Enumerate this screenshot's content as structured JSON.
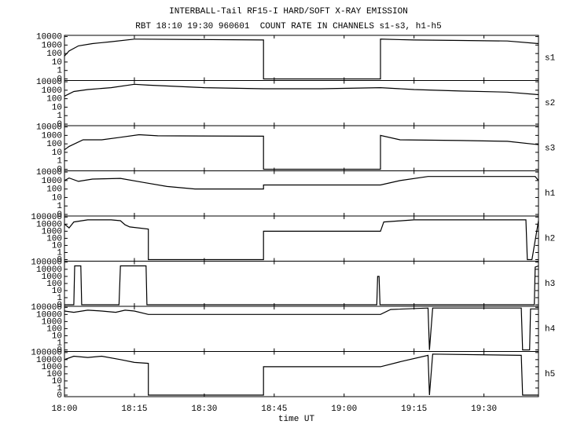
{
  "chart_data": [
    {
      "type": "line",
      "title": "INTERBALL-Tail RF15-I HARD/SOFT X-RAY EMISSION",
      "subtitle": "RBT 18:10 19:30 960601  COUNT RATE IN CHANNELS s1-s3, h1-h5",
      "ylabel": "s1",
      "yscale": "log",
      "ylim": [
        0,
        14000
      ],
      "yticks": [
        10000,
        1000,
        100,
        10,
        1,
        0
      ],
      "color": "#000000",
      "x": [
        0,
        1,
        3,
        6,
        10,
        15,
        16,
        42.7,
        42.7,
        67.8,
        67.8,
        75,
        85,
        95,
        101.7
      ],
      "values": [
        50,
        200,
        800,
        1500,
        2500,
        5000,
        5000,
        4000,
        0,
        0,
        5000,
        4000,
        3500,
        3000,
        1500
      ]
    },
    {
      "type": "line",
      "ylabel": "s2",
      "yscale": "log",
      "ylim": [
        0,
        14000
      ],
      "yticks": [
        10000,
        1000,
        100,
        10,
        1,
        0
      ],
      "color": "#000000",
      "x": [
        0,
        2,
        5,
        10,
        15,
        18,
        30,
        42.7,
        55,
        67.8,
        75,
        85,
        95,
        101.7
      ],
      "values": [
        200,
        700,
        1200,
        2000,
        5000,
        4000,
        2000,
        1500,
        1500,
        2000,
        1200,
        800,
        600,
        300
      ]
    },
    {
      "type": "line",
      "ylabel": "s3",
      "yscale": "log",
      "ylim": [
        0,
        14000
      ],
      "yticks": [
        10000,
        1000,
        100,
        10,
        1,
        0
      ],
      "color": "#000000",
      "x": [
        0,
        1,
        4,
        8,
        12,
        16,
        20,
        42.7,
        42.7,
        67.8,
        67.8,
        72,
        85,
        95,
        101.7
      ],
      "values": [
        20,
        50,
        300,
        300,
        600,
        1200,
        900,
        800,
        0,
        0,
        1000,
        300,
        250,
        200,
        80
      ]
    },
    {
      "type": "line",
      "ylabel": "h1",
      "yscale": "log",
      "ylim": [
        0,
        14000
      ],
      "yticks": [
        10000,
        1000,
        100,
        10,
        1,
        0
      ],
      "color": "#000000",
      "x": [
        0,
        1,
        3,
        6,
        12,
        17,
        22,
        28,
        42.7,
        42.7,
        67.8,
        72,
        78,
        85,
        95,
        101,
        101.7
      ],
      "values": [
        1000,
        2000,
        800,
        1500,
        1800,
        600,
        200,
        100,
        100,
        300,
        300,
        1000,
        3000,
        3000,
        3000,
        3000,
        1000
      ]
    },
    {
      "type": "line",
      "ylabel": "h2",
      "yscale": "log",
      "ylim": [
        0,
        140000
      ],
      "yticks": [
        100000,
        10000,
        1000,
        100,
        10,
        1,
        0
      ],
      "color": "#000000",
      "x": [
        0,
        1,
        2,
        5,
        10,
        12,
        13,
        14,
        18,
        18,
        42.7,
        42.7,
        67.8,
        68.5,
        75,
        90,
        99,
        99.3,
        100.3,
        101.7
      ],
      "values": [
        10000,
        3000,
        20000,
        40000,
        40000,
        30000,
        8000,
        4000,
        2000,
        0,
        0,
        1000,
        1000,
        20000,
        40000,
        40000,
        40000,
        0,
        0,
        30000
      ]
    },
    {
      "type": "line",
      "ylabel": "h3",
      "yscale": "log",
      "ylim": [
        0,
        140000
      ],
      "yticks": [
        100000,
        10000,
        1000,
        100,
        10,
        1,
        0
      ],
      "color": "#000000",
      "x": [
        0,
        2,
        2.2,
        3.5,
        3.7,
        11.5,
        11.7,
        12,
        17.5,
        17.7,
        67,
        67.2,
        67.5,
        67.7,
        100.8,
        101,
        101.7
      ],
      "values": [
        0,
        0,
        30000,
        30000,
        0,
        0,
        0,
        30000,
        30000,
        0,
        0,
        1000,
        1000,
        0,
        0,
        20000,
        30000
      ]
    },
    {
      "type": "line",
      "ylabel": "h4",
      "yscale": "log",
      "ylim": [
        0,
        140000
      ],
      "yticks": [
        100000,
        10000,
        1000,
        100,
        10,
        1,
        0
      ],
      "color": "#000000",
      "x": [
        0,
        2,
        5,
        8,
        11,
        13,
        15,
        18,
        42.7,
        67.8,
        70,
        78,
        78.3,
        79,
        98,
        98.3,
        99.8,
        100,
        101.7
      ],
      "values": [
        30000,
        20000,
        40000,
        30000,
        20000,
        40000,
        30000,
        10000,
        10000,
        10000,
        50000,
        80000,
        0,
        80000,
        80000,
        0,
        0,
        60000,
        60000
      ]
    },
    {
      "type": "line",
      "ylabel": "h5",
      "yscale": "log",
      "ylim": [
        0,
        140000
      ],
      "yticks": [
        100000,
        10000,
        1000,
        100,
        10,
        1,
        0
      ],
      "color": "#000000",
      "xlabel": "time UT",
      "xlim": [
        0,
        101.7
      ],
      "xticks": [
        {
          "value": 0,
          "label": "18:00"
        },
        {
          "value": 15,
          "label": "18:15"
        },
        {
          "value": 30,
          "label": "18:30"
        },
        {
          "value": 45,
          "label": "18:45"
        },
        {
          "value": 60,
          "label": "19:00"
        },
        {
          "value": 75,
          "label": "19:15"
        },
        {
          "value": 90,
          "label": "19:30"
        }
      ],
      "x": [
        0,
        2,
        5,
        8,
        12,
        15,
        18,
        18,
        42.7,
        42.7,
        67.8,
        72,
        78,
        78.3,
        79,
        98,
        98.3,
        101.7
      ],
      "values": [
        10000,
        30000,
        20000,
        30000,
        10000,
        4000,
        3000,
        0,
        0,
        1000,
        1000,
        5000,
        40000,
        0,
        60000,
        40000,
        0,
        0
      ]
    }
  ]
}
